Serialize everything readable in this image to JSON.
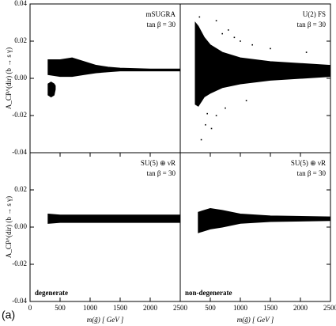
{
  "chart_data": [
    {
      "type": "band",
      "model": "mSUGRA",
      "param": "tan β = 30",
      "y_label": "A_CP^(dir) (b → s γ)",
      "xlim": [
        0,
        2500
      ],
      "ylim": [
        -0.04,
        0.04
      ],
      "yticks": [
        -0.04,
        -0.02,
        {
          "value": 0,
          "label": "0.00"
        },
        0.02,
        0.04
      ],
      "color": "#000000",
      "bands": [
        {
          "x": [
            300,
            500,
            700,
            900,
            1100,
            1300,
            1500,
            2000,
            2500
          ],
          "lower": [
            0.002,
            0.001,
            0.001,
            0.002,
            0.003,
            0.0035,
            0.004,
            0.004,
            0.004
          ],
          "upper": [
            0.01,
            0.01,
            0.011,
            0.009,
            0.007,
            0.006,
            0.0055,
            0.005,
            0.005
          ]
        },
        {
          "x": [
            300,
            350,
            400,
            420
          ],
          "lower": [
            -0.009,
            -0.01,
            -0.009,
            -0.006
          ],
          "upper": [
            -0.003,
            -0.002,
            -0.003,
            -0.004
          ]
        }
      ]
    },
    {
      "type": "band",
      "model": "U(2) FS",
      "param": "tan β = 30",
      "xlim": [
        0,
        2500
      ],
      "ylim": [
        -0.04,
        0.04
      ],
      "color": "#000000",
      "bands": [
        {
          "x": [
            250,
            300,
            400,
            500,
            700,
            1000,
            1500,
            2000,
            2500
          ],
          "lower": [
            -0.014,
            -0.015,
            -0.01,
            -0.008,
            -0.005,
            -0.003,
            -0.001,
            0,
            0.001
          ],
          "upper": [
            0.03,
            0.028,
            0.022,
            0.018,
            0.014,
            0.011,
            0.009,
            0.008,
            0.007
          ]
        }
      ],
      "points": {
        "x": [
          320,
          600,
          700,
          800,
          900,
          450,
          420,
          350,
          520,
          600,
          750,
          1000,
          1200,
          1100,
          1500,
          2100
        ],
        "y": [
          0.033,
          0.031,
          0.024,
          0.026,
          0.022,
          -0.019,
          -0.025,
          -0.033,
          -0.027,
          -0.02,
          -0.016,
          0.02,
          0.018,
          -0.012,
          0.016,
          0.014
        ]
      }
    },
    {
      "type": "band",
      "model": "SU(5) ⊕ νR",
      "param": "tan β = 30",
      "note": "degenerate",
      "y_label": "A_CP^(dir) (b → s γ)",
      "x_label": "m(g̃)  [ GeV ]",
      "xlim": [
        0,
        2500
      ],
      "ylim": [
        -0.04,
        0.04
      ],
      "xticks": [
        0,
        500,
        1000,
        1500,
        2000,
        2500
      ],
      "yticks": [
        -0.04,
        -0.02,
        {
          "value": 0,
          "label": "0.00"
        },
        0.02
      ],
      "color": "#000000",
      "bands": [
        {
          "x": [
            300,
            500,
            1000,
            1500,
            2000,
            2500
          ],
          "lower": [
            0.002,
            0.0025,
            0.0025,
            0.0025,
            0.0025,
            0.0025
          ],
          "upper": [
            0.007,
            0.0065,
            0.0065,
            0.0065,
            0.0065,
            0.0065
          ]
        }
      ]
    },
    {
      "type": "band",
      "model": "SU(5) ⊕ νR",
      "param": "tan β = 30",
      "note": "non-degenerate",
      "x_label": "m(g̃)  [ GeV ]",
      "xlim": [
        0,
        2500
      ],
      "ylim": [
        -0.04,
        0.04
      ],
      "xticks": [
        500,
        1000,
        1500,
        2000,
        2500
      ],
      "color": "#000000",
      "bands": [
        {
          "x": [
            300,
            500,
            700,
            1000,
            1500,
            2500
          ],
          "lower": [
            -0.003,
            -0.001,
            0,
            0.002,
            0.003,
            0.0035
          ],
          "upper": [
            0.008,
            0.01,
            0.009,
            0.007,
            0.006,
            0.0055
          ]
        }
      ]
    }
  ],
  "figure_label": "(a)"
}
